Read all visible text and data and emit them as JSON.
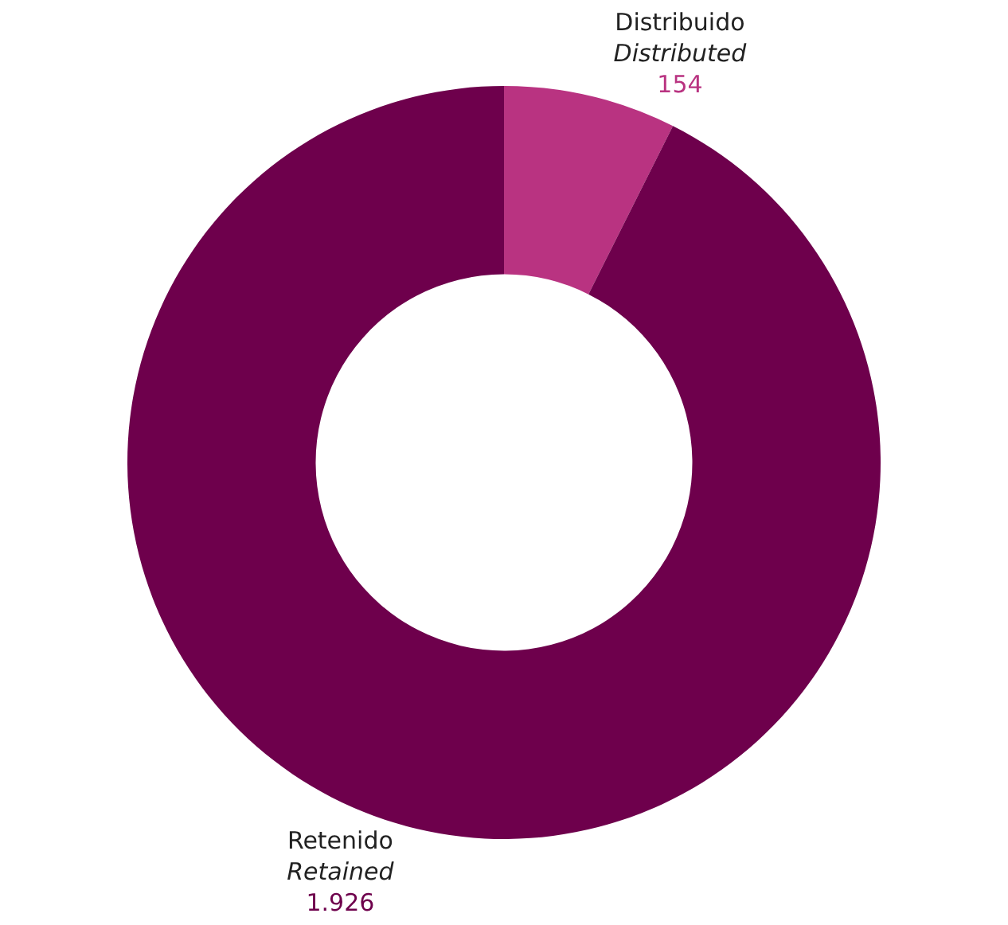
{
  "chart_data": {
    "type": "donut",
    "categories": [
      "Distribuido\nDistributed",
      "Retenido\nRetained"
    ],
    "values": [
      154,
      1926
    ],
    "colors": [
      "#b93381",
      "#6e004c"
    ],
    "value_labels": [
      "154",
      "1.926"
    ],
    "legend": false
  }
}
